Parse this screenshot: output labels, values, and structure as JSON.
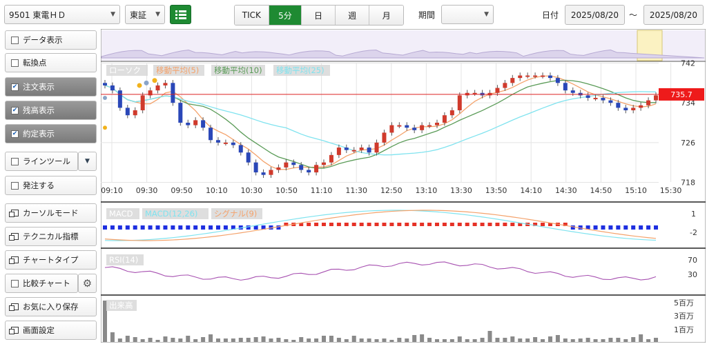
{
  "toolbar": {
    "symbol": "9501 東電ＨＤ",
    "market": "東証",
    "intervals": [
      "TICK",
      "5分",
      "日",
      "週",
      "月"
    ],
    "selected_interval": "5分",
    "period_label": "期間",
    "period_value": "",
    "date_label": "日付",
    "date_from": "2025/08/20",
    "date_sep": "～",
    "date_to": "2025/08/20"
  },
  "sidebar": {
    "items": [
      {
        "label": "データ表示",
        "kind": "check",
        "checked": false
      },
      {
        "label": "転換点",
        "kind": "check",
        "checked": false
      },
      {
        "label": "注文表示",
        "kind": "check",
        "checked": true
      },
      {
        "label": "残高表示",
        "kind": "check",
        "checked": true
      },
      {
        "label": "約定表示",
        "kind": "check",
        "checked": true
      },
      {
        "label": "ラインツール",
        "kind": "check",
        "checked": false
      },
      {
        "label": "発注する",
        "kind": "check",
        "checked": false
      },
      {
        "label": "カーソルモード",
        "kind": "window"
      },
      {
        "label": "テクニカル指標",
        "kind": "window"
      },
      {
        "label": "チャートタイプ",
        "kind": "window"
      },
      {
        "label": "比較チャート",
        "kind": "check",
        "checked": false
      },
      {
        "label": "お気に入り保存",
        "kind": "window"
      },
      {
        "label": "画面設定",
        "kind": "window"
      }
    ]
  },
  "chart_data": [
    {
      "type": "candlestick",
      "legend": [
        "ローソク",
        "移動平均(5)",
        "移動平均(10)",
        "移動平均(25)"
      ],
      "legend_colors": [
        "#888888",
        "#f4a26b",
        "#5a9b57",
        "#7fe3ef"
      ],
      "y_ticks": [
        "742",
        "734",
        "726",
        "718"
      ],
      "current_price": "735.7",
      "x_ticks": [
        "09:10",
        "09:30",
        "09:50",
        "10:10",
        "10:30",
        "10:50",
        "11:10",
        "11:30",
        "12:50",
        "13:10",
        "13:30",
        "13:50",
        "14:10",
        "14:30",
        "14:50",
        "15:10",
        "15:30"
      ],
      "ylim": [
        718,
        742
      ],
      "close": [
        737.5,
        736.5,
        733,
        731.5,
        732.5,
        735.5,
        736.5,
        737.5,
        738,
        734,
        730,
        729.5,
        730.5,
        729,
        726.5,
        726,
        726,
        725.5,
        724,
        722,
        720,
        719.5,
        720.5,
        721,
        722,
        721.5,
        720.5,
        720,
        721.5,
        722,
        723.5,
        725,
        724.5,
        724.5,
        725,
        724,
        726,
        728,
        729.5,
        729.5,
        729,
        728.5,
        729.5,
        729.5,
        730,
        731.5,
        732.5,
        735.5,
        736,
        736,
        735.5,
        736,
        737,
        738,
        739,
        739.5,
        739.5,
        739.5,
        739.5,
        739,
        738,
        736.5,
        736,
        735.5,
        735,
        735,
        734.5,
        734,
        733,
        732.5,
        733,
        733.5,
        734.5,
        735.5
      ],
      "macd_legend": [
        "MACD",
        "MACD(12,26)",
        "シグナル(9)"
      ],
      "macd_ticks": [
        "1",
        "-2"
      ],
      "rsi_legend": "RSI(14)",
      "rsi_ticks": [
        "70",
        "30"
      ],
      "volume_legend": "出来高",
      "volume_ticks": [
        "5百万",
        "3百万",
        "1百万"
      ]
    }
  ]
}
